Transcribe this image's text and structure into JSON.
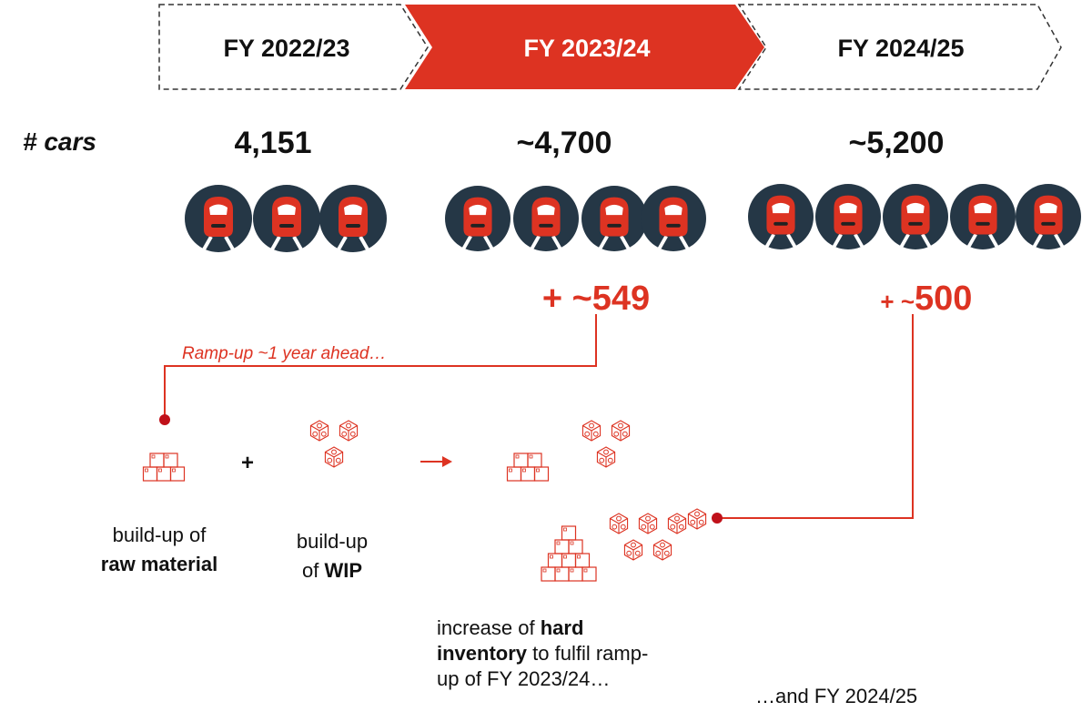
{
  "header": {
    "steps": [
      "FY 2022/23",
      "FY 2023/24",
      "FY 2024/25"
    ]
  },
  "cars": {
    "label": "# cars",
    "values": [
      "4,151",
      "~4,700",
      "~5,200"
    ]
  },
  "increments": {
    "first": "+ ~549",
    "second_prefix": "+ ~",
    "second_value": "500"
  },
  "ramp_note": "Ramp-up ~1 year ahead…",
  "raw_material": {
    "line1": "build-up of",
    "line2": "raw material"
  },
  "plus": "+",
  "wip": {
    "line1": "build-up",
    "line2_plain": "of ",
    "line2_bold": "WIP"
  },
  "inventory": {
    "lines": [
      [
        {
          "text": "increase of "
        },
        {
          "text": "hard",
          "bold": true
        }
      ],
      [
        {
          "text": "inventory",
          "bold": true
        },
        {
          "text": " to fulfil ramp-"
        }
      ],
      [
        {
          "text": "up of FY 2023/24…"
        }
      ]
    ]
  },
  "and_next": "…and FY 2024/25"
}
